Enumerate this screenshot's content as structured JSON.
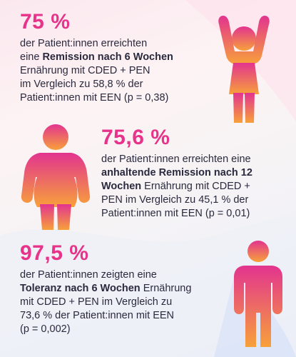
{
  "colors": {
    "accent": "#e8338a",
    "figure_top": "#e2348f",
    "figure_bottom": "#f7a13a",
    "text": "#2a2a3e"
  },
  "icons": [
    "person-arms-raised-icon",
    "person-plump-icon",
    "person-standing-icon"
  ],
  "stats": [
    {
      "value": "75 %",
      "line1": "der Patient:innen erreichten",
      "line2_pre": "eine ",
      "line2_bold": "Remission nach 6 Wochen",
      "line3": "Ernährung mit CDED + PEN",
      "line4": "im Vergleich zu 58,8 % der",
      "line5": "Patient:innen mit EEN (p = 0,38)"
    },
    {
      "value": "75,6 %",
      "line1": "der Patient:innen erreichten eine",
      "line2_bold": "anhaltende Remission nach 12",
      "line3_bold": "Wochen",
      "line3_rest": " Ernährung mit CDED +",
      "line4": "PEN im Vergleich zu 45,1 % der",
      "line5": "Patient:innen mit EEN (p = 0,01)"
    },
    {
      "value": "97,5 %",
      "line1": "der Patient:innen zeigten eine",
      "line2_bold": "Toleranz nach 6 Wochen",
      "line2_rest": " Ernährung",
      "line3": "mit CDED + PEN im Vergleich zu",
      "line4": "73,6 % der Patient:innen mit EEN",
      "line5": "(p = 0,002)"
    }
  ]
}
